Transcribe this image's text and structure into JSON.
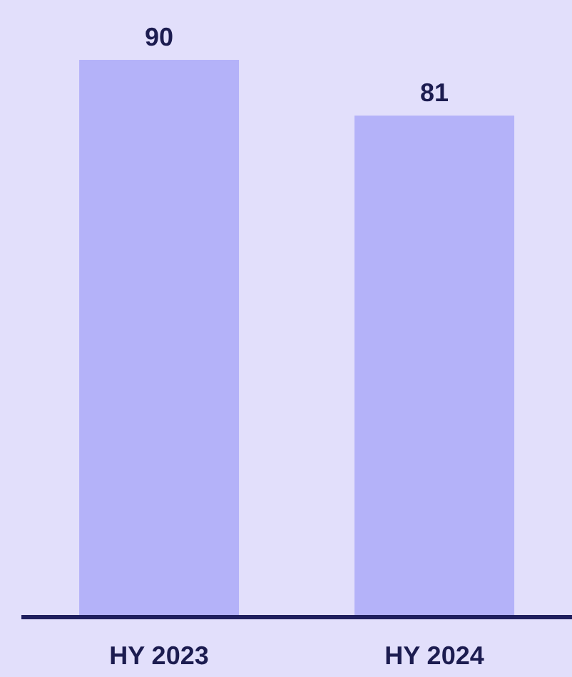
{
  "chart_data": {
    "type": "bar",
    "categories": [
      "HY 2023",
      "HY 2024"
    ],
    "values": [
      90,
      81
    ],
    "color": "#b4b2f9",
    "data_labels": true
  }
}
